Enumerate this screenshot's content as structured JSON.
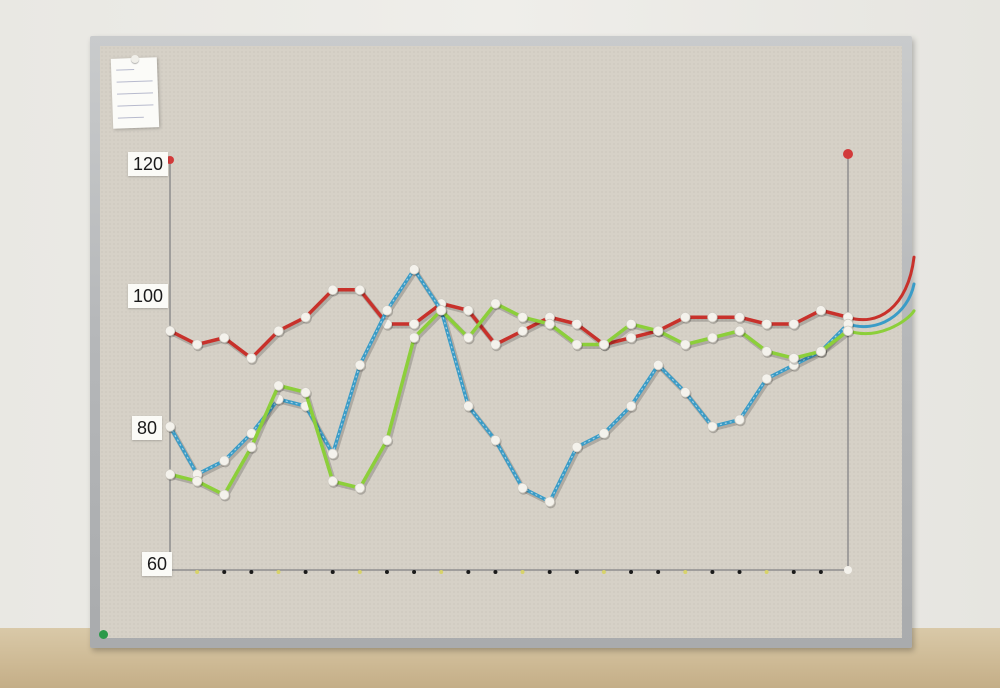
{
  "chart_data": {
    "type": "line",
    "title": "",
    "xlabel": "",
    "ylabel": "",
    "ylim": [
      60,
      120
    ],
    "yticks": [
      60,
      80,
      100,
      120
    ],
    "x": [
      0,
      1,
      2,
      3,
      4,
      5,
      6,
      7,
      8,
      9,
      10,
      11,
      12,
      13,
      14,
      15,
      16,
      17,
      18,
      19,
      20,
      21,
      22,
      23,
      24,
      25
    ],
    "series": [
      {
        "color": "#c8312b",
        "values": [
          95,
          93,
          94,
          91,
          95,
          97,
          101,
          101,
          96,
          96,
          99,
          98,
          93,
          95,
          97,
          96,
          93,
          94,
          95,
          97,
          97,
          97,
          96,
          96,
          98,
          97
        ]
      },
      {
        "color": "#3a9cc7",
        "values": [
          81,
          74,
          76,
          80,
          85,
          84,
          77,
          90,
          98,
          104,
          98,
          84,
          79,
          72,
          70,
          78,
          80,
          84,
          90,
          86,
          81,
          82,
          88,
          90,
          92,
          96
        ]
      },
      {
        "color": "#8ccf3a",
        "values": [
          74,
          73,
          71,
          78,
          87,
          86,
          73,
          72,
          79,
          94,
          98,
          94,
          99,
          97,
          96,
          93,
          93,
          96,
          95,
          93,
          94,
          95,
          92,
          91,
          92,
          95
        ]
      }
    ]
  },
  "pin_colors": {
    "thread": "#8e8e8e",
    "pin_head": "#f4f2ec",
    "red_pin": "#d23a3a",
    "green_pin": "#2c9a4a"
  }
}
